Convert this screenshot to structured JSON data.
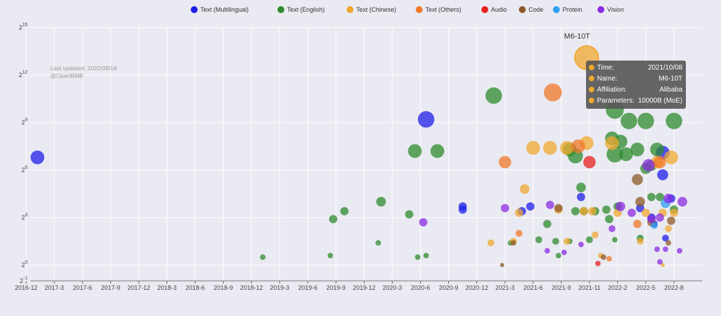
{
  "watermark": {
    "line1": "Last updated: 2022/09/18",
    "line2": "@OpenBMB"
  },
  "tooltip": {
    "label": "M6-10T",
    "rows": [
      {
        "key": "Time:",
        "value": "2021/10/08"
      },
      {
        "key": "Name:",
        "value": "M6-10T"
      },
      {
        "key": "Affiliation:",
        "value": "Alibaba"
      },
      {
        "key": "Parameters:",
        "value": "10000B (MoE)"
      }
    ]
  },
  "chart_data": {
    "type": "scatter",
    "xlabel": "",
    "ylabel": "",
    "y_scale": "log2",
    "ylim": [
      -1,
      15
    ],
    "y_ticks": [
      -1,
      0,
      3,
      6,
      9,
      12,
      15
    ],
    "x_tick_labels": [
      "2016-12",
      "2017-3",
      "2017-6",
      "2017-9",
      "2017-12",
      "2018-3",
      "2018-6",
      "2018-9",
      "2018-12",
      "2019-3",
      "2019-6",
      "2019-9",
      "2019-12",
      "2020-3",
      "2020-6",
      "2020-9",
      "2020-12",
      "2021-3",
      "2021-6",
      "2021-9",
      "2021-11",
      "2022-2",
      "2022-5",
      "2022-8"
    ],
    "grid": true,
    "legend_position": "top",
    "series": [
      {
        "name": "Text (Multilingual)",
        "color": "#1f1fe8",
        "points": [
          {
            "x": 0.4,
            "y": 6.8,
            "r": 10
          },
          {
            "x": 14.2,
            "y": 9.2,
            "r": 12
          },
          {
            "x": 15.5,
            "y": 3.5,
            "r": 6
          },
          {
            "x": 15.5,
            "y": 3.7,
            "r": 6
          },
          {
            "x": 17.6,
            "y": 3.4,
            "r": 6
          },
          {
            "x": 17.9,
            "y": 3.7,
            "r": 6
          },
          {
            "x": 19.7,
            "y": 4.3,
            "r": 6
          },
          {
            "x": 21.8,
            "y": 3.6,
            "r": 6
          },
          {
            "x": 22.2,
            "y": 3.0,
            "r": 6
          },
          {
            "x": 22.6,
            "y": 7.1,
            "r": 10
          },
          {
            "x": 22.6,
            "y": 5.7,
            "r": 8
          },
          {
            "x": 22.3,
            "y": 2.6,
            "r": 5
          },
          {
            "x": 22.9,
            "y": 4.2,
            "r": 6
          },
          {
            "x": 22.7,
            "y": 1.7,
            "r": 5
          }
        ]
      },
      {
        "name": "Text (English)",
        "color": "#2e8b2e",
        "points": [
          {
            "x": 8.4,
            "y": 0.5,
            "r": 4
          },
          {
            "x": 10.8,
            "y": 0.6,
            "r": 4
          },
          {
            "x": 10.9,
            "y": 2.9,
            "r": 6
          },
          {
            "x": 11.3,
            "y": 3.4,
            "r": 6
          },
          {
            "x": 12.5,
            "y": 1.4,
            "r": 4
          },
          {
            "x": 12.6,
            "y": 4.0,
            "r": 7
          },
          {
            "x": 13.6,
            "y": 3.2,
            "r": 6
          },
          {
            "x": 13.8,
            "y": 7.2,
            "r": 10
          },
          {
            "x": 13.9,
            "y": 0.5,
            "r": 4
          },
          {
            "x": 14.2,
            "y": 0.6,
            "r": 4
          },
          {
            "x": 14.6,
            "y": 7.2,
            "r": 10
          },
          {
            "x": 16.6,
            "y": 10.7,
            "r": 12
          },
          {
            "x": 17.2,
            "y": 1.4,
            "r": 4
          },
          {
            "x": 18.2,
            "y": 1.6,
            "r": 5
          },
          {
            "x": 18.5,
            "y": 2.6,
            "r": 6
          },
          {
            "x": 18.8,
            "y": 1.5,
            "r": 5
          },
          {
            "x": 18.9,
            "y": 0.6,
            "r": 4
          },
          {
            "x": 19.3,
            "y": 1.5,
            "r": 4
          },
          {
            "x": 19.3,
            "y": 7.3,
            "r": 10
          },
          {
            "x": 19.5,
            "y": 6.9,
            "r": 11
          },
          {
            "x": 19.5,
            "y": 3.4,
            "r": 6
          },
          {
            "x": 19.7,
            "y": 4.9,
            "r": 7
          },
          {
            "x": 19.8,
            "y": 3.4,
            "r": 6
          },
          {
            "x": 20.0,
            "y": 1.6,
            "r": 5
          },
          {
            "x": 20.2,
            "y": 3.4,
            "r": 6
          },
          {
            "x": 20.6,
            "y": 3.5,
            "r": 6
          },
          {
            "x": 20.7,
            "y": 2.9,
            "r": 6
          },
          {
            "x": 20.8,
            "y": 8.0,
            "r": 10
          },
          {
            "x": 20.9,
            "y": 7.0,
            "r": 12
          },
          {
            "x": 20.9,
            "y": 9.8,
            "r": 13
          },
          {
            "x": 20.9,
            "y": 1.6,
            "r": 4
          },
          {
            "x": 21.0,
            "y": 3.7,
            "r": 6
          },
          {
            "x": 21.1,
            "y": 7.8,
            "r": 10
          },
          {
            "x": 21.3,
            "y": 7.0,
            "r": 10
          },
          {
            "x": 21.4,
            "y": 9.1,
            "r": 12
          },
          {
            "x": 21.7,
            "y": 7.3,
            "r": 10
          },
          {
            "x": 21.8,
            "y": 1.7,
            "r": 5
          },
          {
            "x": 22.0,
            "y": 9.1,
            "r": 12
          },
          {
            "x": 22.0,
            "y": 6.1,
            "r": 8
          },
          {
            "x": 22.2,
            "y": 6.3,
            "r": 8
          },
          {
            "x": 22.2,
            "y": 4.3,
            "r": 6
          },
          {
            "x": 22.4,
            "y": 7.3,
            "r": 10
          },
          {
            "x": 22.5,
            "y": 4.3,
            "r": 6
          },
          {
            "x": 23.0,
            "y": 9.1,
            "r": 12
          },
          {
            "x": 23.0,
            "y": 3.5,
            "r": 6
          }
        ]
      },
      {
        "name": "Text (Chinese)",
        "color": "#f0a830",
        "points": [
          {
            "x": 16.5,
            "y": 1.4,
            "r": 5
          },
          {
            "x": 17.3,
            "y": 1.5,
            "r": 5
          },
          {
            "x": 17.7,
            "y": 4.8,
            "r": 7
          },
          {
            "x": 17.5,
            "y": 3.3,
            "r": 6
          },
          {
            "x": 18.0,
            "y": 7.4,
            "r": 10
          },
          {
            "x": 18.6,
            "y": 7.4,
            "r": 10
          },
          {
            "x": 18.9,
            "y": 3.5,
            "r": 6
          },
          {
            "x": 19.2,
            "y": 7.4,
            "r": 10
          },
          {
            "x": 19.2,
            "y": 1.5,
            "r": 5
          },
          {
            "x": 19.8,
            "y": 3.4,
            "r": 6
          },
          {
            "x": 19.9,
            "y": 7.7,
            "r": 10
          },
          {
            "x": 19.9,
            "y": 13.1,
            "r": 16
          },
          {
            "x": 20.1,
            "y": 3.4,
            "r": 6
          },
          {
            "x": 20.2,
            "y": 1.9,
            "r": 5
          },
          {
            "x": 20.4,
            "y": 0.6,
            "r": 4
          },
          {
            "x": 20.8,
            "y": 7.7,
            "r": 10
          },
          {
            "x": 21.0,
            "y": 3.3,
            "r": 6
          },
          {
            "x": 21.8,
            "y": 1.5,
            "r": 5
          },
          {
            "x": 22.0,
            "y": 3.3,
            "r": 6
          },
          {
            "x": 22.4,
            "y": 6.5,
            "r": 9
          },
          {
            "x": 22.6,
            "y": 3.3,
            "r": 6
          },
          {
            "x": 22.6,
            "y": 0.0,
            "r": 3
          },
          {
            "x": 22.9,
            "y": 6.8,
            "r": 10
          },
          {
            "x": 23.0,
            "y": 3.3,
            "r": 6
          },
          {
            "x": 22.8,
            "y": 2.3,
            "r": 5
          }
        ]
      },
      {
        "name": "Text (Others)",
        "color": "#f07828",
        "points": [
          {
            "x": 17.0,
            "y": 6.5,
            "r": 9
          },
          {
            "x": 17.5,
            "y": 2.0,
            "r": 5
          },
          {
            "x": 18.7,
            "y": 10.9,
            "r": 13
          },
          {
            "x": 19.6,
            "y": 7.5,
            "r": 10
          },
          {
            "x": 20.7,
            "y": 0.4,
            "r": 4
          },
          {
            "x": 21.7,
            "y": 2.6,
            "r": 6
          },
          {
            "x": 22.5,
            "y": 6.5,
            "r": 9
          }
        ]
      },
      {
        "name": "Audio",
        "color": "#e82020",
        "points": [
          {
            "x": 20.0,
            "y": 6.5,
            "r": 9
          },
          {
            "x": 20.3,
            "y": 0.1,
            "r": 4
          }
        ]
      },
      {
        "name": "Code",
        "color": "#8b5a2b",
        "points": [
          {
            "x": 16.9,
            "y": 0.0,
            "r": 3
          },
          {
            "x": 17.3,
            "y": 1.4,
            "r": 4
          },
          {
            "x": 18.9,
            "y": 3.6,
            "r": 6
          },
          {
            "x": 20.5,
            "y": 0.5,
            "r": 4
          },
          {
            "x": 21.7,
            "y": 5.4,
            "r": 8
          },
          {
            "x": 21.8,
            "y": 4.0,
            "r": 7
          },
          {
            "x": 22.2,
            "y": 2.7,
            "r": 6
          },
          {
            "x": 22.9,
            "y": 2.8,
            "r": 6
          },
          {
            "x": 22.8,
            "y": 1.4,
            "r": 4
          }
        ]
      },
      {
        "name": "Protein",
        "color": "#30a0f0",
        "points": [
          {
            "x": 22.7,
            "y": 3.9,
            "r": 7
          },
          {
            "x": 22.3,
            "y": 2.5,
            "r": 5
          }
        ]
      },
      {
        "name": "Vision",
        "color": "#8a2be2",
        "points": [
          {
            "x": 14.1,
            "y": 2.7,
            "r": 6
          },
          {
            "x": 17.0,
            "y": 3.6,
            "r": 6
          },
          {
            "x": 18.5,
            "y": 0.9,
            "r": 4
          },
          {
            "x": 19.1,
            "y": 0.8,
            "r": 4
          },
          {
            "x": 18.6,
            "y": 3.8,
            "r": 6
          },
          {
            "x": 19.7,
            "y": 1.3,
            "r": 4
          },
          {
            "x": 20.8,
            "y": 2.3,
            "r": 5
          },
          {
            "x": 21.1,
            "y": 3.7,
            "r": 7
          },
          {
            "x": 21.5,
            "y": 3.3,
            "r": 6
          },
          {
            "x": 22.1,
            "y": 6.3,
            "r": 9
          },
          {
            "x": 22.2,
            "y": 2.9,
            "r": 6
          },
          {
            "x": 22.4,
            "y": 1.0,
            "r": 4
          },
          {
            "x": 22.5,
            "y": 0.2,
            "r": 4
          },
          {
            "x": 22.7,
            "y": 1.0,
            "r": 4
          },
          {
            "x": 22.8,
            "y": 4.2,
            "r": 7
          },
          {
            "x": 23.3,
            "y": 4.0,
            "r": 7
          },
          {
            "x": 23.2,
            "y": 0.9,
            "r": 4
          },
          {
            "x": 22.5,
            "y": 3.0,
            "r": 6
          }
        ]
      }
    ]
  }
}
